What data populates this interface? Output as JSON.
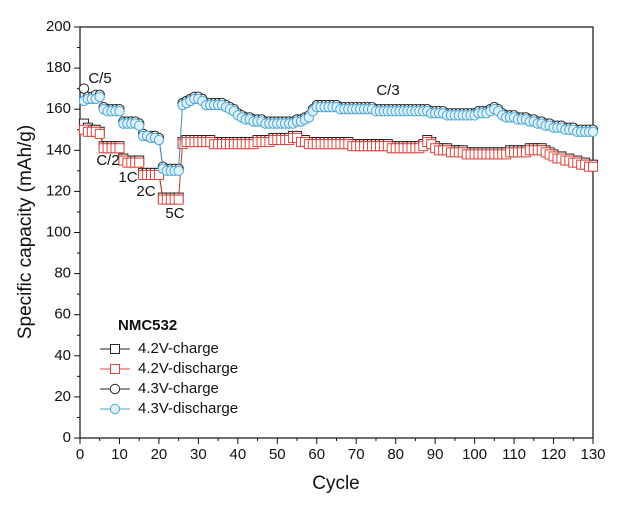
{
  "chart_data": {
    "type": "line",
    "xlabel": "Cycle",
    "ylabel": "Specific capacity (mAh/g)",
    "xlim": [
      0,
      130
    ],
    "xticks": [
      0,
      10,
      20,
      30,
      40,
      50,
      60,
      70,
      80,
      90,
      100,
      110,
      120,
      130
    ],
    "ylim": [
      0,
      200
    ],
    "yticks": [
      0,
      20,
      40,
      60,
      80,
      100,
      120,
      140,
      160,
      180,
      200
    ],
    "grid": false,
    "legend": "lower left",
    "legend_title": "NMC532",
    "annotations": [
      "C/5",
      "C/2",
      "1C",
      "2C",
      "5C",
      "C/3"
    ],
    "x": [
      1,
      2,
      3,
      4,
      5,
      6,
      7,
      8,
      9,
      10,
      11,
      12,
      13,
      14,
      15,
      16,
      17,
      18,
      19,
      20,
      21,
      22,
      23,
      24,
      25,
      26,
      27,
      28,
      29,
      30,
      31,
      32,
      33,
      34,
      35,
      36,
      37,
      38,
      39,
      40,
      41,
      42,
      43,
      44,
      45,
      46,
      47,
      48,
      49,
      50,
      51,
      52,
      53,
      54,
      55,
      56,
      57,
      58,
      59,
      60,
      61,
      62,
      63,
      64,
      65,
      66,
      67,
      68,
      69,
      70,
      71,
      72,
      73,
      74,
      75,
      76,
      77,
      78,
      79,
      80,
      81,
      82,
      83,
      84,
      85,
      86,
      87,
      88,
      89,
      90,
      91,
      92,
      93,
      94,
      95,
      96,
      97,
      98,
      99,
      100,
      101,
      102,
      103,
      104,
      105,
      106,
      107,
      108,
      109,
      110,
      111,
      112,
      113,
      114,
      115,
      116,
      117,
      118,
      119,
      120,
      121,
      122,
      123,
      124,
      125,
      126,
      127,
      128,
      129,
      130
    ],
    "series": [
      {
        "name": "4.2V-charge",
        "color": "#222222",
        "marker": "square",
        "values": [
          153,
          151,
          150,
          150,
          149,
          142,
          142,
          142,
          142,
          142,
          136,
          135,
          135,
          135,
          135,
          129,
          129,
          129,
          129,
          129,
          117,
          117,
          117,
          117,
          117,
          144,
          145,
          145,
          145,
          145,
          145,
          145,
          145,
          144,
          144,
          144,
          144,
          144,
          144,
          144,
          144,
          144,
          144,
          144,
          145,
          145,
          145,
          145,
          146,
          146,
          146,
          146,
          146,
          147,
          147,
          145,
          145,
          144,
          144,
          144,
          144,
          144,
          144,
          144,
          144,
          144,
          144,
          144,
          143,
          143,
          143,
          143,
          143,
          143,
          143,
          143,
          143,
          143,
          142,
          142,
          142,
          142,
          142,
          142,
          142,
          142,
          143,
          145,
          144,
          142,
          141,
          141,
          141,
          140,
          140,
          140,
          140,
          139,
          139,
          139,
          139,
          139,
          139,
          139,
          139,
          139,
          139,
          139,
          140,
          140,
          140,
          140,
          140,
          141,
          141,
          141,
          141,
          140,
          139,
          138,
          137,
          137,
          136,
          136,
          135,
          135,
          134,
          134,
          133,
          133
        ]
      },
      {
        "name": "4.2V-discharge",
        "color": "#e0443a",
        "marker": "square",
        "values": [
          150,
          149,
          149,
          149,
          148,
          141,
          141,
          141,
          141,
          141,
          135,
          134,
          134,
          134,
          134,
          128,
          128,
          128,
          128,
          128,
          116,
          116,
          116,
          116,
          116,
          143,
          144,
          144,
          144,
          144,
          144,
          144,
          144,
          143,
          143,
          143,
          143,
          143,
          143,
          143,
          143,
          143,
          143,
          143,
          144,
          144,
          144,
          144,
          145,
          145,
          145,
          145,
          145,
          146,
          146,
          144,
          144,
          143,
          143,
          143,
          143,
          143,
          143,
          143,
          143,
          143,
          143,
          143,
          142,
          142,
          142,
          142,
          142,
          142,
          142,
          142,
          142,
          142,
          141,
          141,
          141,
          141,
          141,
          141,
          141,
          141,
          142,
          144,
          143,
          141,
          140,
          140,
          140,
          139,
          139,
          139,
          139,
          138,
          138,
          138,
          138,
          138,
          138,
          138,
          138,
          138,
          138,
          138,
          139,
          139,
          139,
          139,
          139,
          140,
          140,
          140,
          140,
          139,
          138,
          137,
          136,
          136,
          135,
          135,
          134,
          134,
          133,
          133,
          132,
          132
        ]
      },
      {
        "name": "4.3V-charge",
        "color": "#222222",
        "marker": "circle",
        "values": [
          170,
          166,
          166,
          167,
          167,
          161,
          160,
          160,
          160,
          160,
          154,
          154,
          154,
          154,
          153,
          148,
          147,
          147,
          147,
          146,
          132,
          131,
          131,
          131,
          131,
          163,
          164,
          165,
          166,
          166,
          165,
          163,
          163,
          163,
          163,
          163,
          162,
          161,
          160,
          158,
          157,
          156,
          156,
          155,
          155,
          155,
          154,
          154,
          154,
          154,
          154,
          154,
          154,
          154,
          155,
          155,
          156,
          157,
          160,
          162,
          162,
          162,
          162,
          162,
          162,
          161,
          161,
          161,
          161,
          161,
          161,
          161,
          161,
          161,
          160,
          160,
          160,
          160,
          160,
          160,
          160,
          160,
          160,
          160,
          160,
          160,
          160,
          160,
          159,
          159,
          159,
          159,
          158,
          158,
          158,
          158,
          158,
          158,
          158,
          158,
          159,
          159,
          159,
          160,
          161,
          160,
          158,
          157,
          157,
          157,
          156,
          156,
          156,
          155,
          155,
          154,
          154,
          153,
          153,
          152,
          152,
          152,
          151,
          151,
          151,
          150,
          150,
          150,
          150,
          150
        ]
      },
      {
        "name": "4.3V-discharge",
        "color": "#4aa6d6",
        "marker": "circle",
        "values": [
          164,
          165,
          165,
          165,
          166,
          160,
          159,
          159,
          159,
          159,
          153,
          153,
          153,
          153,
          152,
          147,
          147,
          146,
          146,
          145,
          131,
          130,
          130,
          130,
          130,
          162,
          163,
          164,
          165,
          165,
          164,
          162,
          162,
          162,
          162,
          162,
          161,
          160,
          159,
          157,
          156,
          155,
          155,
          154,
          154,
          154,
          153,
          153,
          153,
          153,
          153,
          153,
          153,
          153,
          154,
          154,
          155,
          156,
          159,
          161,
          161,
          161,
          161,
          161,
          161,
          160,
          160,
          160,
          160,
          160,
          160,
          160,
          160,
          160,
          159,
          159,
          159,
          159,
          159,
          159,
          159,
          159,
          159,
          159,
          159,
          159,
          159,
          159,
          158,
          158,
          158,
          158,
          157,
          157,
          157,
          157,
          157,
          157,
          157,
          157,
          158,
          158,
          158,
          159,
          160,
          159,
          157,
          156,
          156,
          156,
          155,
          155,
          155,
          154,
          154,
          153,
          153,
          152,
          152,
          151,
          151,
          151,
          150,
          150,
          150,
          149,
          149,
          149,
          149,
          149
        ]
      }
    ]
  }
}
